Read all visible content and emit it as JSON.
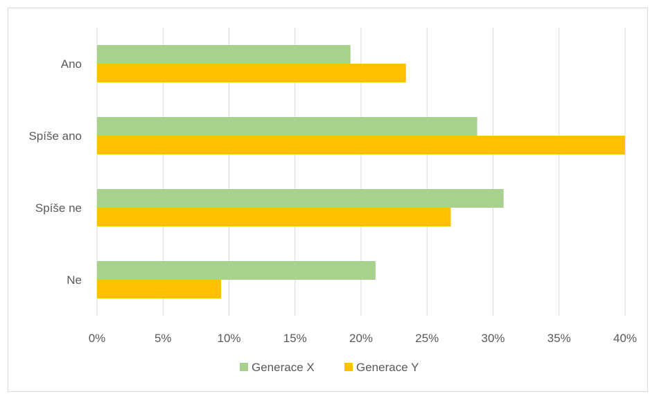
{
  "chart_data": {
    "type": "bar",
    "orientation": "horizontal",
    "title": "",
    "xlabel": "",
    "ylabel": "",
    "categories": [
      "Ano",
      "Spíše ano",
      "Spíše ne",
      "Ne"
    ],
    "series": [
      {
        "name": "Generace X",
        "color": "#a9d18e",
        "values": [
          19.2,
          28.8,
          30.8,
          21.1
        ]
      },
      {
        "name": "Generace Y",
        "color": "#ffc000",
        "values": [
          23.4,
          40.0,
          26.8,
          9.4
        ]
      }
    ],
    "xlim": [
      0,
      40
    ],
    "xticks": [
      0,
      5,
      10,
      15,
      20,
      25,
      30,
      35,
      40
    ],
    "xtick_labels": [
      "0%",
      "5%",
      "10%",
      "15%",
      "20%",
      "25%",
      "30%",
      "35%",
      "40%"
    ],
    "grid": true,
    "gridline_color": "#d9d9d9",
    "legend_position": "bottom"
  }
}
